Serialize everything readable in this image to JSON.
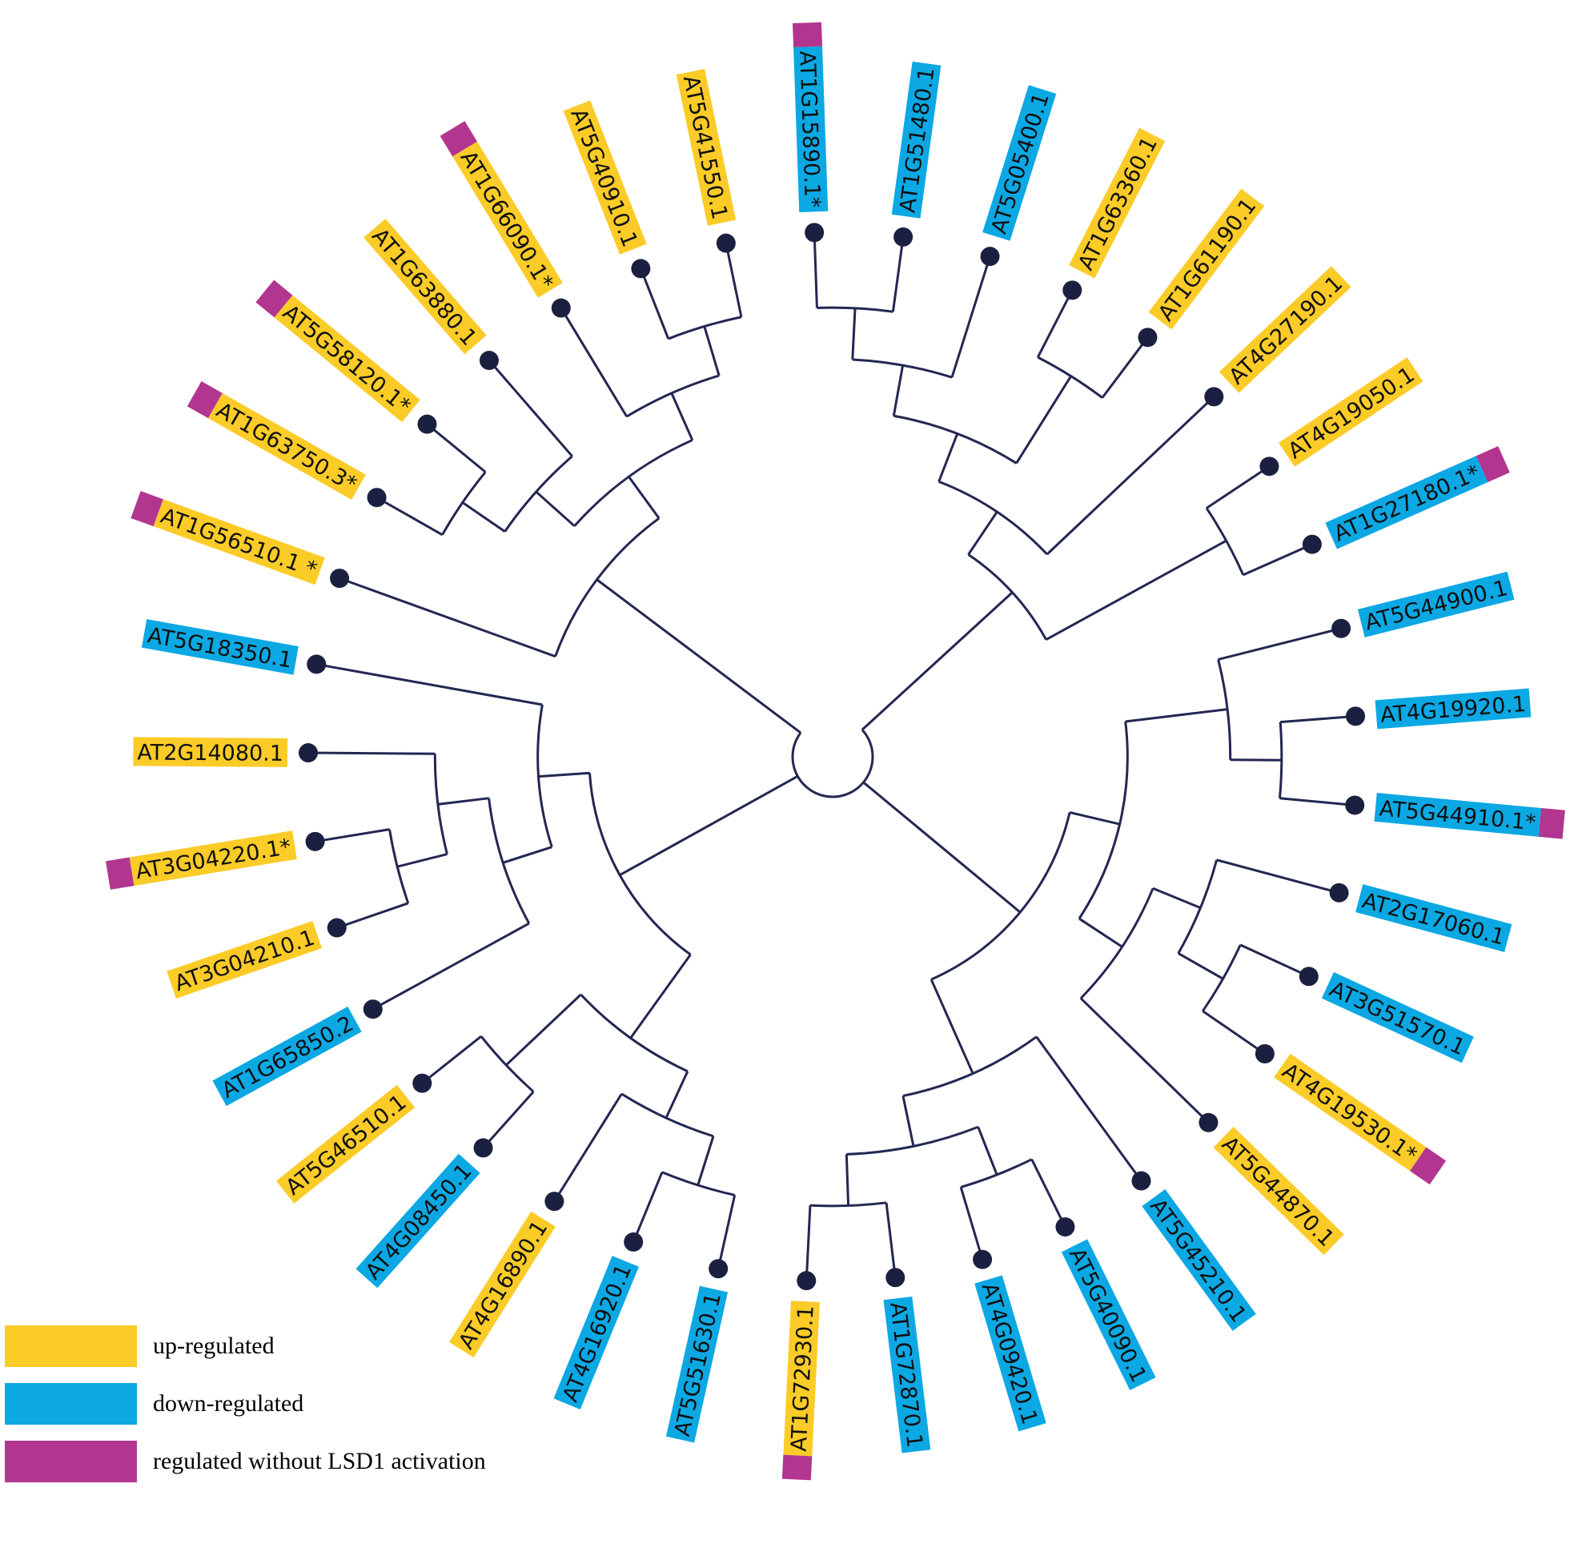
{
  "colors": {
    "up": "#fbcb28",
    "down": "#0ca8e4",
    "lsd1": "#b2368f",
    "branch": "#232752",
    "dot": "#1c2040"
  },
  "legend": [
    {
      "key": "up",
      "label": "up-regulated"
    },
    {
      "key": "down",
      "label": "down-regulated"
    },
    {
      "key": "lsd1",
      "label": "regulated without LSD1 activation"
    }
  ],
  "tree": {
    "center": "unlabeled",
    "leaves": [
      {
        "id": "AT1G15890.1*",
        "reg": "down",
        "lsd1": true
      },
      {
        "id": "AT1G51480.1",
        "reg": "down",
        "lsd1": false
      },
      {
        "id": "AT5G05400.1",
        "reg": "down",
        "lsd1": false
      },
      {
        "id": "AT1G63360.1",
        "reg": "up",
        "lsd1": false
      },
      {
        "id": "AT1G61190.1",
        "reg": "up",
        "lsd1": false
      },
      {
        "id": "AT4G27190.1",
        "reg": "up",
        "lsd1": false
      },
      {
        "id": "AT4G19050.1",
        "reg": "up",
        "lsd1": false
      },
      {
        "id": "AT1G27180.1*",
        "reg": "down",
        "lsd1": true
      },
      {
        "id": "AT5G44900.1",
        "reg": "down",
        "lsd1": false
      },
      {
        "id": "AT4G19920.1",
        "reg": "down",
        "lsd1": false
      },
      {
        "id": "AT5G44910.1*",
        "reg": "down",
        "lsd1": true
      },
      {
        "id": "AT2G17060.1",
        "reg": "down",
        "lsd1": false
      },
      {
        "id": "AT3G51570.1",
        "reg": "down",
        "lsd1": false
      },
      {
        "id": "AT4G19530.1*",
        "reg": "up",
        "lsd1": true
      },
      {
        "id": "AT5G44870.1",
        "reg": "up",
        "lsd1": false
      },
      {
        "id": "AT5G45210.1",
        "reg": "down",
        "lsd1": false
      },
      {
        "id": "AT5G40090.1",
        "reg": "down",
        "lsd1": false
      },
      {
        "id": "AT4G09420.1",
        "reg": "down",
        "lsd1": false
      },
      {
        "id": "AT1G72870.1",
        "reg": "down",
        "lsd1": false
      },
      {
        "id": "AT1G72930.1",
        "reg": "up",
        "lsd1": true
      },
      {
        "id": "AT5G51630.1",
        "reg": "down",
        "lsd1": false
      },
      {
        "id": "AT4G16920.1",
        "reg": "down",
        "lsd1": false
      },
      {
        "id": "AT4G16890.1",
        "reg": "up",
        "lsd1": false
      },
      {
        "id": "AT4G08450.1",
        "reg": "down",
        "lsd1": false
      },
      {
        "id": "AT5G46510.1",
        "reg": "up",
        "lsd1": false
      },
      {
        "id": "AT1G65850.2",
        "reg": "down",
        "lsd1": false
      },
      {
        "id": "AT3G04210.1",
        "reg": "up",
        "lsd1": false
      },
      {
        "id": "AT3G04220.1*",
        "reg": "up",
        "lsd1": true
      },
      {
        "id": "AT2G14080.1",
        "reg": "up",
        "lsd1": false
      },
      {
        "id": "AT5G18350.1",
        "reg": "down",
        "lsd1": false
      },
      {
        "id": "AT1G56510.1 *",
        "reg": "up",
        "lsd1": true
      },
      {
        "id": "AT1G63750.3*",
        "reg": "up",
        "lsd1": true
      },
      {
        "id": "AT5G58120.1*",
        "reg": "up",
        "lsd1": true
      },
      {
        "id": "AT1G63880.1",
        "reg": "up",
        "lsd1": false
      },
      {
        "id": "AT1G66090.1*",
        "reg": "up",
        "lsd1": true
      },
      {
        "id": "AT5G40910.1",
        "reg": "up",
        "lsd1": false
      },
      {
        "id": "AT5G41550.1",
        "reg": "up",
        "lsd1": false
      }
    ],
    "topology": [
      [
        [
          [
            [
              [
                0,
                1
              ],
              2
            ],
            [
              3,
              4
            ]
          ],
          5
        ],
        [
          6,
          7
        ]
      ],
      [
        [
          [
            8,
            [
              9,
              10
            ]
          ],
          [
            [
              11,
              [
                12,
                13
              ]
            ],
            14
          ]
        ],
        [
          15,
          [
            [
              16,
              17
            ],
            [
              18,
              19
            ]
          ]
        ]
      ],
      [
        [
          [
            [
              20,
              21
            ],
            22
          ],
          [
            23,
            24
          ]
        ],
        [
          [
            25,
            [
              [
                26,
                27
              ],
              28
            ]
          ],
          29
        ]
      ],
      [
        30,
        [
          [
            [
              31,
              32
            ],
            33
          ],
          [
            34,
            [
              35,
              36
            ]
          ]
        ]
      ]
    ]
  }
}
